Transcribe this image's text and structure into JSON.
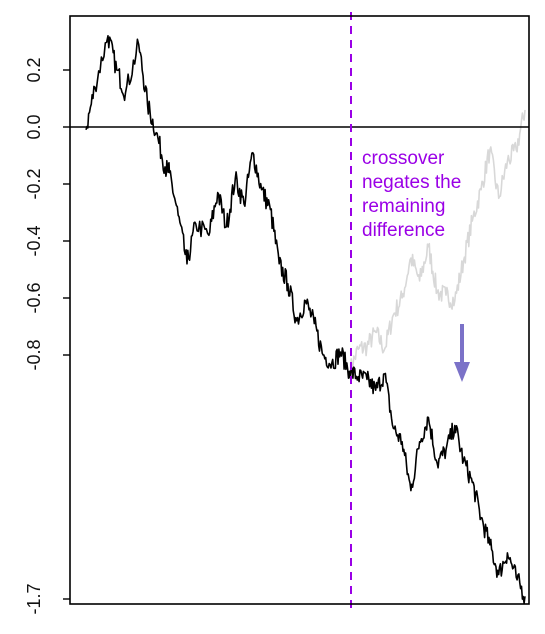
{
  "chart_data": {
    "type": "line",
    "title": "",
    "xlabel": "",
    "ylabel": "",
    "ylim": [
      -1.7,
      0.35
    ],
    "grid": false,
    "y_ticks": [
      {
        "value": 0.2,
        "label": "0.2"
      },
      {
        "value": 0.0,
        "label": "0.0"
      },
      {
        "value": -0.2,
        "label": "-0.2"
      },
      {
        "value": -0.4,
        "label": "-0.4"
      },
      {
        "value": -0.6,
        "label": "-0.6"
      },
      {
        "value": -0.8,
        "label": "-0.8"
      },
      {
        "value": -1.7,
        "label": "-1.7"
      }
    ],
    "reference_line_y": 0.0,
    "crossover_x": 0.595,
    "series": [
      {
        "color": "#000000",
        "x": [
          0.0,
          0.02,
          0.05,
          0.07,
          0.09,
          0.12,
          0.14,
          0.16,
          0.18,
          0.19,
          0.21,
          0.23,
          0.25,
          0.28,
          0.3,
          0.32,
          0.34,
          0.36,
          0.38,
          0.4,
          0.42,
          0.44,
          0.46,
          0.48,
          0.5,
          0.52,
          0.54,
          0.56,
          0.58,
          0.6,
          0.62,
          0.64,
          0.66,
          0.68,
          0.7,
          0.72,
          0.74,
          0.76,
          0.78,
          0.8,
          0.82,
          0.84,
          0.86,
          0.88,
          0.9,
          0.92,
          0.94,
          0.96,
          0.98,
          1.0
        ],
        "y": [
          -0.01,
          0.14,
          0.32,
          0.2,
          0.12,
          0.29,
          0.08,
          -0.02,
          -0.14,
          -0.16,
          -0.31,
          -0.48,
          -0.34,
          -0.38,
          -0.23,
          -0.35,
          -0.18,
          -0.27,
          -0.09,
          -0.22,
          -0.29,
          -0.48,
          -0.55,
          -0.68,
          -0.61,
          -0.69,
          -0.8,
          -0.83,
          -0.79,
          -0.86,
          -0.88,
          -0.89,
          -0.93,
          -0.87,
          -1.07,
          -1.12,
          -1.3,
          -1.12,
          -1.03,
          -1.2,
          -1.15,
          -1.06,
          -1.19,
          -1.27,
          -1.4,
          -1.5,
          -1.61,
          -1.53,
          -1.62,
          -1.69
        ]
      },
      {
        "color": "#d8d8d8",
        "x": [
          0.6,
          0.62,
          0.64,
          0.66,
          0.68,
          0.7,
          0.72,
          0.74,
          0.76,
          0.78,
          0.8,
          0.82,
          0.84,
          0.86,
          0.88,
          0.9,
          0.92,
          0.94,
          0.96,
          0.98,
          1.0
        ],
        "y": [
          -0.86,
          -0.78,
          -0.77,
          -0.72,
          -0.78,
          -0.66,
          -0.6,
          -0.46,
          -0.54,
          -0.42,
          -0.58,
          -0.59,
          -0.61,
          -0.47,
          -0.33,
          -0.22,
          -0.08,
          -0.25,
          -0.12,
          -0.08,
          0.06
        ]
      }
    ],
    "annotations": [
      {
        "lines": [
          "crossover",
          "negates the",
          "remaining",
          "difference"
        ],
        "color": "#9a00e6"
      }
    ],
    "arrow_color": "#7b72c8"
  }
}
